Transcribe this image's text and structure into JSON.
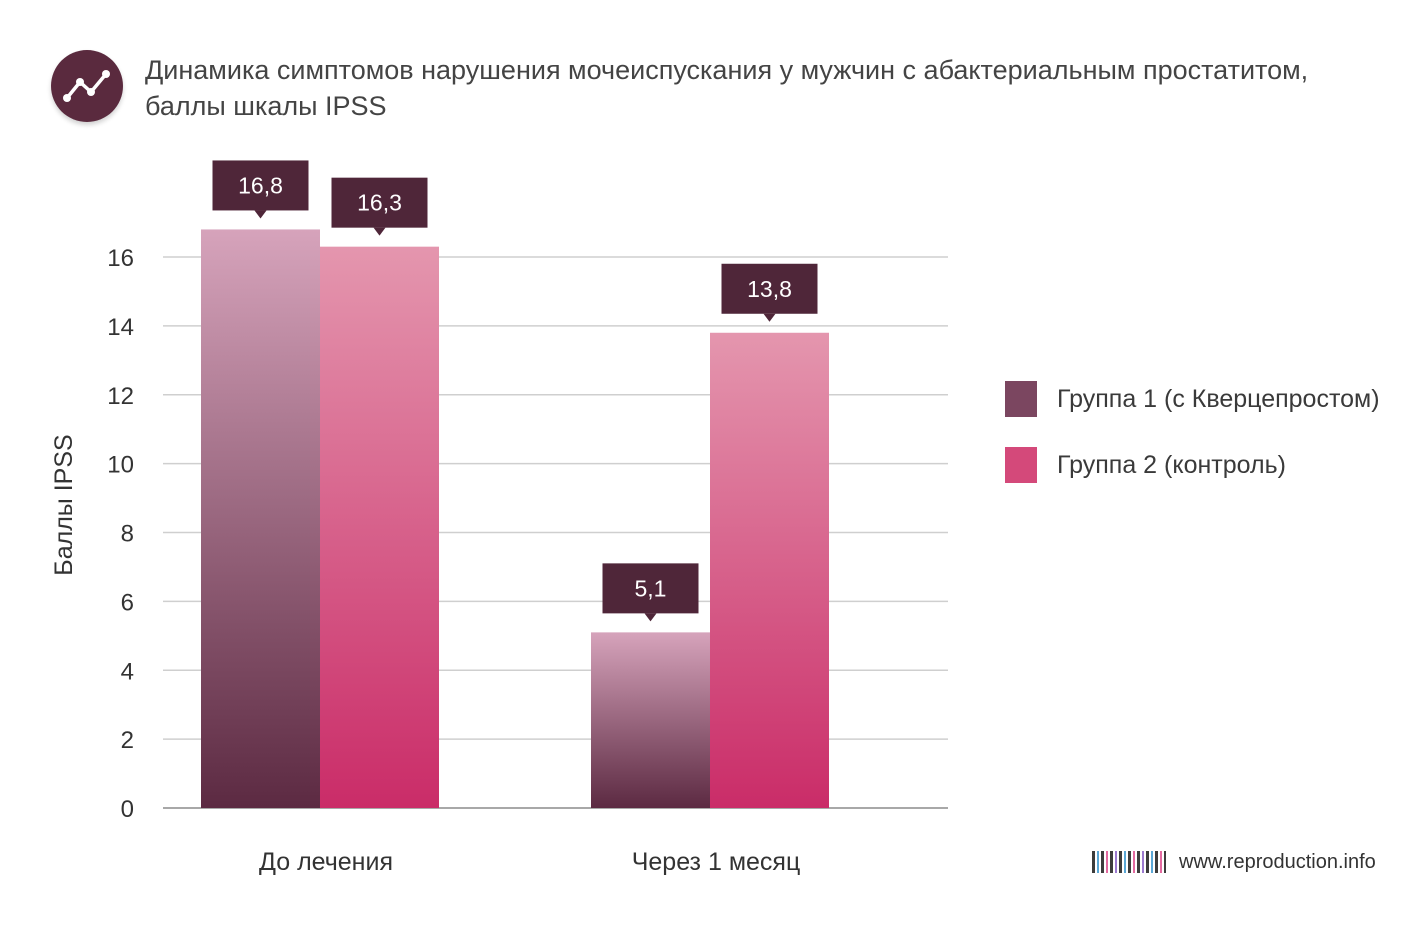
{
  "header": {
    "icon": "trend-line-icon",
    "title_line1": "Динамика симптомов нарушения мочеиспускания у мужчин с абактериальным простатитом,",
    "title_line2": "баллы шкалы IPSS"
  },
  "chart_data": {
    "type": "bar",
    "categories": [
      "До лечения",
      "Через 1 месяц"
    ],
    "series": [
      {
        "name": "Группа 1 (с Кверцепростом)",
        "values": [
          16.8,
          5.1
        ],
        "labels": [
          "16,8",
          "5,1"
        ],
        "color": "#7b4660"
      },
      {
        "name": "Группа 2 (контроль)",
        "values": [
          16.3,
          13.8
        ],
        "labels": [
          "16,3",
          "13,8"
        ],
        "color": "#d4497a"
      }
    ],
    "ylabel": "Баллы IPSS",
    "yticks": [
      "0",
      "2",
      "4",
      "6",
      "8",
      "10",
      "12",
      "14",
      "16"
    ],
    "ylim": [
      0,
      16
    ],
    "grid": true,
    "legend": "right",
    "label_box_color": "#4f2639"
  },
  "footer": {
    "site": "www.reproduction.info",
    "icon": "barcode-icon"
  }
}
